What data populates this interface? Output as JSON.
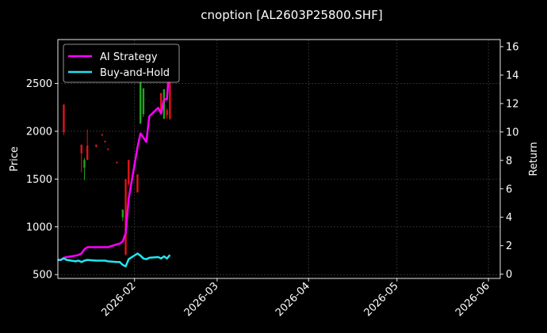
{
  "chart_data": {
    "type": "candlestick-line",
    "title": "cnoption [AL2603P25800.SHF]",
    "ylabel_left": "Price",
    "ylabel_right": "Return",
    "x_ticks": [
      "2026-02",
      "2026-03",
      "2026-04",
      "2026-05",
      "2026-06"
    ],
    "y_left_ticks": [
      500,
      1000,
      1500,
      2000,
      2500
    ],
    "y_right_ticks": [
      0,
      2,
      4,
      6,
      8,
      10,
      12,
      14,
      16
    ],
    "x_range": [
      "2026-01-06",
      "2026-06-05"
    ],
    "y_left_range": [
      460,
      2960
    ],
    "y_right_range": [
      -0.3,
      16.5
    ],
    "grid": true,
    "legend_position": "top-left",
    "colors": {
      "background": "#000000",
      "strategy": "#ff00ff",
      "buy_hold": "#22e5ee",
      "up": "#1fa51f",
      "down": "#e0141a",
      "grid": "#4a4a4a"
    },
    "candles": [
      {
        "date": "2026-01-08",
        "open": 2280,
        "close": 1990,
        "high": 2280,
        "low": 1960
      },
      {
        "date": "2026-01-14",
        "open": 1860,
        "close": 1770,
        "high": 1860,
        "low": 1570
      },
      {
        "date": "2026-01-15",
        "open": 1620,
        "close": 1700,
        "high": 1720,
        "low": 1490
      },
      {
        "date": "2026-01-16",
        "open": 1850,
        "close": 1700,
        "high": 2020,
        "low": 1700
      },
      {
        "date": "2026-01-19",
        "open": 1860,
        "close": 1840,
        "high": 1860,
        "low": 1830
      },
      {
        "date": "2026-01-21",
        "open": 1970,
        "close": 1960,
        "high": 1970,
        "low": 1950
      },
      {
        "date": "2026-01-22",
        "open": 1900,
        "close": 1890,
        "high": 1900,
        "low": 1880
      },
      {
        "date": "2026-01-23",
        "open": 1820,
        "close": 1810,
        "high": 1820,
        "low": 1800
      },
      {
        "date": "2026-01-26",
        "open": 1680,
        "close": 1670,
        "high": 1680,
        "low": 1660
      },
      {
        "date": "2026-01-28",
        "open": 1100,
        "close": 1180,
        "high": 1180,
        "low": 1060
      },
      {
        "date": "2026-01-29",
        "open": 1500,
        "close": 710,
        "high": 1500,
        "low": 700
      },
      {
        "date": "2026-01-30",
        "open": 1700,
        "close": 1450,
        "high": 1700,
        "low": 1430
      },
      {
        "date": "2026-02-02",
        "open": 1550,
        "close": 1360,
        "high": 1550,
        "low": 1360
      },
      {
        "date": "2026-02-03",
        "open": 2080,
        "close": 2580,
        "high": 2600,
        "low": 2080
      },
      {
        "date": "2026-02-04",
        "open": 2180,
        "close": 2450,
        "high": 2450,
        "low": 2150
      },
      {
        "date": "2026-02-10",
        "open": 2400,
        "close": 2200,
        "high": 2400,
        "low": 2180
      },
      {
        "date": "2026-02-11",
        "open": 2130,
        "close": 2440,
        "high": 2440,
        "low": 2130
      },
      {
        "date": "2026-02-12",
        "open": 2220,
        "close": 2170,
        "high": 2240,
        "low": 2130
      },
      {
        "date": "2026-02-13",
        "open": 2850,
        "close": 2130,
        "high": 2870,
        "low": 2120
      }
    ],
    "series": [
      {
        "name": "AI Strategy",
        "points": [
          [
            "2026-01-06",
            1.0
          ],
          [
            "2026-01-07",
            1.0
          ],
          [
            "2026-01-08",
            1.15
          ],
          [
            "2026-01-09",
            1.2
          ],
          [
            "2026-01-12",
            1.3
          ],
          [
            "2026-01-13",
            1.35
          ],
          [
            "2026-01-14",
            1.45
          ],
          [
            "2026-01-15",
            1.75
          ],
          [
            "2026-01-16",
            1.9
          ],
          [
            "2026-01-19",
            1.9
          ],
          [
            "2026-01-20",
            1.9
          ],
          [
            "2026-01-21",
            1.9
          ],
          [
            "2026-01-22",
            1.9
          ],
          [
            "2026-01-23",
            1.9
          ],
          [
            "2026-01-26",
            2.1
          ],
          [
            "2026-01-27",
            2.15
          ],
          [
            "2026-01-28",
            2.3
          ],
          [
            "2026-01-29",
            2.9
          ],
          [
            "2026-01-30",
            5.3
          ],
          [
            "2026-02-02",
            8.9
          ],
          [
            "2026-02-03",
            9.9
          ],
          [
            "2026-02-04",
            9.6
          ],
          [
            "2026-02-05",
            9.3
          ],
          [
            "2026-02-06",
            11.1
          ],
          [
            "2026-02-09",
            11.7
          ],
          [
            "2026-02-10",
            11.3
          ],
          [
            "2026-02-11",
            12.3
          ],
          [
            "2026-02-12",
            12.3
          ],
          [
            "2026-02-13",
            15.2
          ]
        ]
      },
      {
        "name": "Buy-and-Hold",
        "points": [
          [
            "2026-01-06",
            1.0
          ],
          [
            "2026-01-07",
            1.0
          ],
          [
            "2026-01-08",
            1.1
          ],
          [
            "2026-01-09",
            1.0
          ],
          [
            "2026-01-12",
            0.9
          ],
          [
            "2026-01-13",
            0.95
          ],
          [
            "2026-01-14",
            0.85
          ],
          [
            "2026-01-15",
            0.95
          ],
          [
            "2026-01-16",
            1.0
          ],
          [
            "2026-01-19",
            0.95
          ],
          [
            "2026-01-20",
            0.95
          ],
          [
            "2026-01-21",
            0.95
          ],
          [
            "2026-01-22",
            0.95
          ],
          [
            "2026-01-23",
            0.9
          ],
          [
            "2026-01-26",
            0.85
          ],
          [
            "2026-01-27",
            0.85
          ],
          [
            "2026-01-28",
            0.65
          ],
          [
            "2026-01-29",
            0.55
          ],
          [
            "2026-01-30",
            1.05
          ],
          [
            "2026-02-02",
            1.45
          ],
          [
            "2026-02-03",
            1.3
          ],
          [
            "2026-02-04",
            1.1
          ],
          [
            "2026-02-05",
            1.05
          ],
          [
            "2026-02-06",
            1.15
          ],
          [
            "2026-02-09",
            1.2
          ],
          [
            "2026-02-10",
            1.1
          ],
          [
            "2026-02-11",
            1.25
          ],
          [
            "2026-02-12",
            1.1
          ],
          [
            "2026-02-13",
            1.35
          ]
        ]
      }
    ]
  }
}
